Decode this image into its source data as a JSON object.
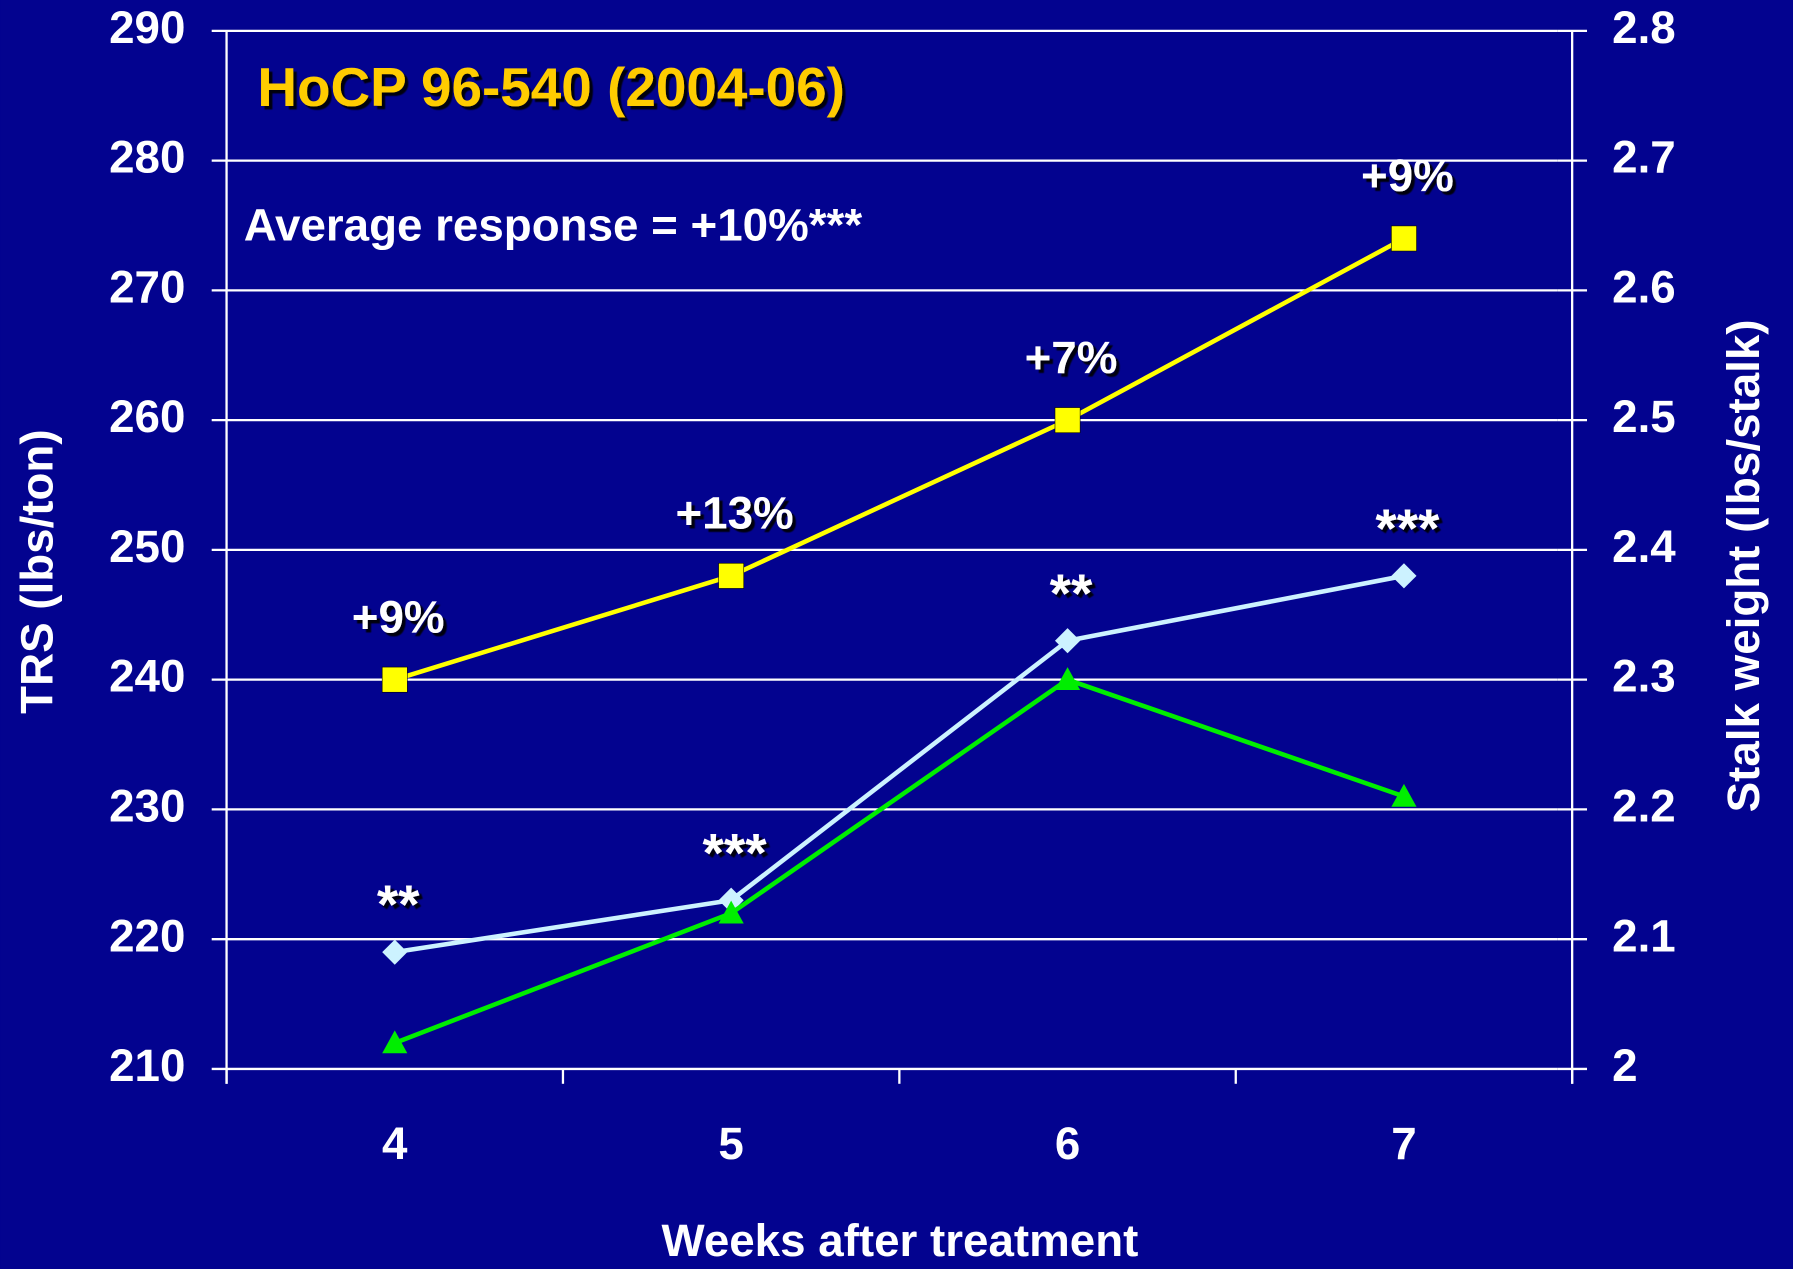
{
  "chart_data": {
    "type": "line",
    "title": "HoCP 96-540 (2004-06)",
    "annotation": "Average response = +10%***",
    "x_label": "Weeks after treatment",
    "y_label": "TRS (lbs/ton)",
    "y2_label": "Stalk weight (lbs/stalk)",
    "categories": [
      "4",
      "5",
      "6",
      "7"
    ],
    "ylim": [
      210,
      290
    ],
    "yticks": [
      210,
      220,
      230,
      240,
      250,
      260,
      270,
      280,
      290
    ],
    "y2lim": [
      2,
      2.8
    ],
    "y2ticks": [
      2,
      2.1,
      2.2,
      2.3,
      2.4,
      2.5,
      2.6,
      2.7,
      2.8
    ],
    "grid": true,
    "series": [
      {
        "color": "#ffff00",
        "marker": "square",
        "values": [
          240,
          248,
          260,
          274
        ],
        "point_labels": [
          "+9%",
          "+13%",
          "+7%",
          "+9%"
        ]
      },
      {
        "color": "#ccf2ff",
        "marker": "diamond",
        "axis": "y2",
        "values": [
          2.09,
          2.13,
          2.33,
          2.38
        ],
        "point_labels": [
          "**",
          "***",
          "**",
          "***"
        ]
      },
      {
        "color": "#00ee00",
        "marker": "triangle",
        "axis": "y2",
        "values": [
          2.02,
          2.12,
          2.3,
          2.21
        ]
      }
    ]
  }
}
